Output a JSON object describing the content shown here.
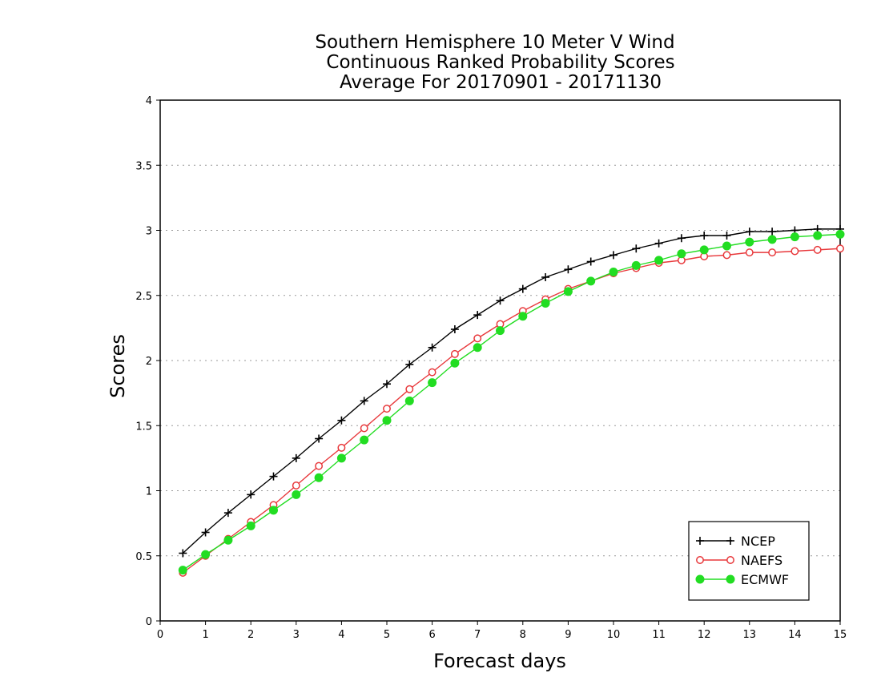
{
  "chart_data": {
    "type": "line",
    "title_lines": [
      "Southern Hemisphere 10 Meter V Wind",
      "Continuous Ranked Probability Scores",
      "Average For 20170901 - 20171130"
    ],
    "xlabel": "Forecast days",
    "ylabel": "Scores",
    "xlim": [
      0,
      15
    ],
    "ylim": [
      0,
      4
    ],
    "xticks": [
      "0",
      "1",
      "2",
      "3",
      "4",
      "5",
      "6",
      "7",
      "8",
      "9",
      "10",
      "11",
      "12",
      "13",
      "14",
      "15"
    ],
    "yticks": [
      "0",
      "0.5",
      "1",
      "1.5",
      "2",
      "2.5",
      "3",
      "3.5",
      "4"
    ],
    "grid": "horizontal dotted",
    "legend_position": "bottom-right",
    "x": [
      0.5,
      1,
      1.5,
      2,
      2.5,
      3,
      3.5,
      4,
      4.5,
      5,
      5.5,
      6,
      6.5,
      7,
      7.5,
      8,
      8.5,
      9,
      9.5,
      10,
      10.5,
      11,
      11.5,
      12,
      12.5,
      13,
      13.5,
      14,
      14.5,
      15
    ],
    "series": [
      {
        "name": "NCEP",
        "color": "#000000",
        "marker": "plus",
        "values": [
          0.52,
          0.68,
          0.83,
          0.97,
          1.11,
          1.25,
          1.4,
          1.54,
          1.69,
          1.82,
          1.97,
          2.1,
          2.24,
          2.35,
          2.46,
          2.55,
          2.64,
          2.7,
          2.76,
          2.81,
          2.86,
          2.9,
          2.94,
          2.96,
          2.96,
          2.99,
          2.99,
          3.0,
          3.01,
          3.01
        ]
      },
      {
        "name": "NAEFS",
        "color": "#e8383b",
        "marker": "open-circle",
        "values": [
          0.37,
          0.5,
          0.63,
          0.76,
          0.89,
          1.04,
          1.19,
          1.33,
          1.48,
          1.63,
          1.78,
          1.91,
          2.05,
          2.17,
          2.28,
          2.38,
          2.47,
          2.55,
          2.61,
          2.67,
          2.71,
          2.75,
          2.77,
          2.8,
          2.81,
          2.83,
          2.83,
          2.84,
          2.85,
          2.86
        ]
      },
      {
        "name": "ECMWF",
        "color": "#22dd22",
        "marker": "filled-circle",
        "values": [
          0.39,
          0.51,
          0.62,
          0.73,
          0.85,
          0.97,
          1.1,
          1.25,
          1.39,
          1.54,
          1.69,
          1.83,
          1.98,
          2.1,
          2.23,
          2.34,
          2.44,
          2.53,
          2.61,
          2.68,
          2.73,
          2.77,
          2.82,
          2.85,
          2.88,
          2.91,
          2.93,
          2.95,
          2.96,
          2.97
        ]
      }
    ]
  }
}
